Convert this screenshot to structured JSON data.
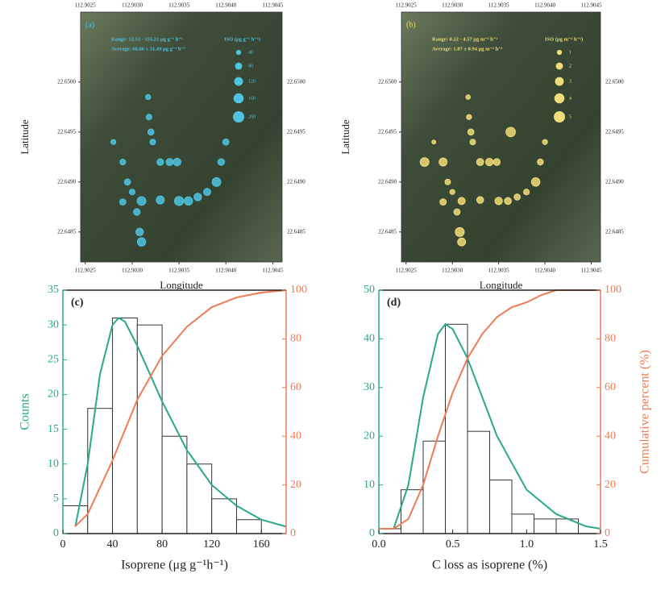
{
  "chart_data": [
    {
      "type": "scatter",
      "panel_label": "(a)",
      "color": "#4fc3e0",
      "annotations": [
        "Range: 12.53 - 155.21 μg g⁻¹ h⁻¹",
        "Average: 66.86 ± 31.49 μg g⁻¹ h⁻¹"
      ],
      "size_legend": {
        "title": "ISO (μg g⁻¹ h⁻¹)",
        "values": [
          40,
          80,
          120,
          160,
          200
        ]
      },
      "x": [
        112.90317,
        112.90318,
        112.9032,
        112.90322,
        112.9033,
        112.9034,
        112.90348,
        112.903,
        112.90305,
        112.90308,
        112.9031,
        112.9029,
        112.9031,
        112.9033,
        112.9035,
        112.9036,
        112.9037,
        112.9038,
        112.9039,
        112.90395,
        112.904,
        112.9028,
        112.9029,
        112.90295
      ],
      "y": [
        22.64985,
        22.64965,
        22.6495,
        22.6494,
        22.6492,
        22.6492,
        22.6492,
        22.6489,
        22.6487,
        22.6485,
        22.6484,
        22.6488,
        22.64881,
        22.64882,
        22.64881,
        22.64881,
        22.64885,
        22.6489,
        22.649,
        22.6492,
        22.6494,
        22.6494,
        22.6492,
        22.649
      ],
      "sizes": [
        40,
        50,
        60,
        50,
        70,
        80,
        90,
        50,
        70,
        90,
        110,
        60,
        120,
        100,
        130,
        110,
        90,
        80,
        120,
        70,
        60,
        40,
        50,
        60
      ],
      "xlim": [
        112.90245,
        112.9046
      ],
      "ylim": [
        22.6482,
        22.6507
      ],
      "xticks": [
        112.9025,
        {
          "value": 112.903,
          "label": "112.9030"
        },
        112.9035,
        {
          "value": 112.904,
          "label": "112.9040"
        },
        112.9045
      ],
      "yticks": [
        22.6485,
        {
          "value": 22.649,
          "label": "22.6490"
        },
        22.6495,
        {
          "value": 22.65,
          "label": "22.6500"
        }
      ],
      "xlabel": "Longitude",
      "ylabel": "Latitude"
    },
    {
      "type": "scatter",
      "panel_label": "(b)",
      "color": "#f0dc78",
      "annotations": [
        "Range: 0.22 - 4.57 μg m⁻² h⁻¹",
        "Average: 1.87 ± 0.94 μg m⁻² h⁻¹"
      ],
      "size_legend": {
        "title": "ISO (μg m⁻² h⁻¹)",
        "values": [
          1,
          2,
          3,
          4,
          5
        ]
      },
      "x": [
        112.90317,
        112.90318,
        112.9032,
        112.90322,
        112.9033,
        112.9034,
        112.90348,
        112.903,
        112.90305,
        112.90308,
        112.9031,
        112.9029,
        112.9031,
        112.9033,
        112.9035,
        112.9036,
        112.9037,
        112.9038,
        112.9039,
        112.90395,
        112.904,
        112.9028,
        112.9029,
        112.90295,
        112.90363,
        112.9027
      ],
      "y": [
        22.64985,
        22.64965,
        22.6495,
        22.6494,
        22.6492,
        22.6492,
        22.6492,
        22.6489,
        22.6487,
        22.6485,
        22.6484,
        22.6488,
        22.64881,
        22.64882,
        22.64881,
        22.64881,
        22.64885,
        22.6489,
        22.649,
        22.6492,
        22.6494,
        22.6494,
        22.6492,
        22.649,
        22.6495,
        22.6492
      ],
      "sizes": [
        0.8,
        1.0,
        1.5,
        1.2,
        2.0,
        2.2,
        1.8,
        1.0,
        1.5,
        3.2,
        2.5,
        1.6,
        2.0,
        1.8,
        2.2,
        1.9,
        1.5,
        1.3,
        2.8,
        1.4,
        1.0,
        0.6,
        2.5,
        1.2,
        3.5,
        3.0
      ],
      "xlim": [
        112.90245,
        112.9046
      ],
      "ylim": [
        22.6482,
        22.6507
      ],
      "xticks": [
        112.9025,
        {
          "value": 112.903,
          "label": "112.9030"
        },
        112.9035,
        {
          "value": 112.904,
          "label": "112.9040"
        },
        112.9045
      ],
      "yticks": [
        22.6485,
        {
          "value": 22.649,
          "label": "22.6490"
        },
        22.6495,
        {
          "value": 22.65,
          "label": "22.6500"
        }
      ],
      "xlabel": "Longitude",
      "ylabel": "Latitude"
    },
    {
      "type": "histogram",
      "panel_label": "(c)",
      "color": "#ffffff",
      "bins": [
        0,
        20,
        40,
        60,
        80,
        100,
        120,
        140,
        160
      ],
      "counts": [
        4,
        18,
        31,
        30,
        14,
        10,
        5,
        2
      ],
      "fit_curve": {
        "color": "#2aa88c",
        "x": [
          10,
          20,
          30,
          40,
          45,
          50,
          60,
          80,
          100,
          120,
          140,
          160,
          180
        ],
        "values": [
          1,
          10,
          23,
          30,
          31,
          30.5,
          27,
          19,
          12,
          7,
          4,
          2,
          1
        ]
      },
      "cumulative_curve": {
        "color": "#ef7a55",
        "axis": "y2",
        "x": [
          10,
          20,
          40,
          60,
          80,
          100,
          120,
          140,
          160,
          180
        ],
        "values": [
          3,
          8,
          30,
          55,
          73,
          85,
          93,
          97,
          99,
          100
        ]
      },
      "xlim": [
        0,
        180
      ],
      "ylim": [
        0,
        35
      ],
      "y2lim": [
        0,
        100
      ],
      "xticks": [
        0,
        40,
        80,
        120,
        160
      ],
      "yticks": [
        0,
        5,
        10,
        15,
        20,
        25,
        30,
        35
      ],
      "y2ticks": [
        0,
        20,
        40,
        60,
        80,
        100
      ],
      "xlabel": "Isoprene (μg g⁻¹h⁻¹)",
      "ylabel": "Counts"
    },
    {
      "type": "histogram",
      "panel_label": "(d)",
      "color": "#ffffff",
      "bins": [
        0,
        0.15,
        0.3,
        0.45,
        0.6,
        0.75,
        0.9,
        1.05,
        1.2,
        1.35
      ],
      "counts": [
        1,
        9,
        19,
        43,
        21,
        11,
        4,
        3,
        3
      ],
      "fit_curve": {
        "color": "#2aa88c",
        "x": [
          0.1,
          0.2,
          0.3,
          0.4,
          0.45,
          0.5,
          0.6,
          0.8,
          1.0,
          1.2,
          1.4,
          1.5
        ],
        "values": [
          1,
          10,
          28,
          41,
          43,
          42,
          36,
          20,
          9,
          4,
          1.5,
          1
        ]
      },
      "cumulative_curve": {
        "color": "#ef7a55",
        "axis": "y2",
        "x": [
          0,
          0.1,
          0.2,
          0.3,
          0.4,
          0.5,
          0.6,
          0.7,
          0.8,
          0.9,
          1.0,
          1.1,
          1.2,
          1.5
        ],
        "values": [
          2,
          2,
          6,
          20,
          40,
          58,
          72,
          82,
          89,
          93,
          95,
          98,
          100,
          100
        ]
      },
      "xlim": [
        0,
        1.5
      ],
      "ylim": [
        0,
        50
      ],
      "y2lim": [
        0,
        100
      ],
      "xticks": [
        {
          "value": 0,
          "label": "0.0"
        },
        0.5,
        {
          "value": 1,
          "label": "1.0"
        },
        1.5
      ],
      "yticks": [
        0,
        10,
        20,
        30,
        40,
        50
      ],
      "y2ticks": [
        0,
        20,
        40,
        60,
        80,
        100
      ],
      "xlabel": "C loss as isoprene (%)",
      "y2label": "Cumulative percent (%)"
    }
  ]
}
